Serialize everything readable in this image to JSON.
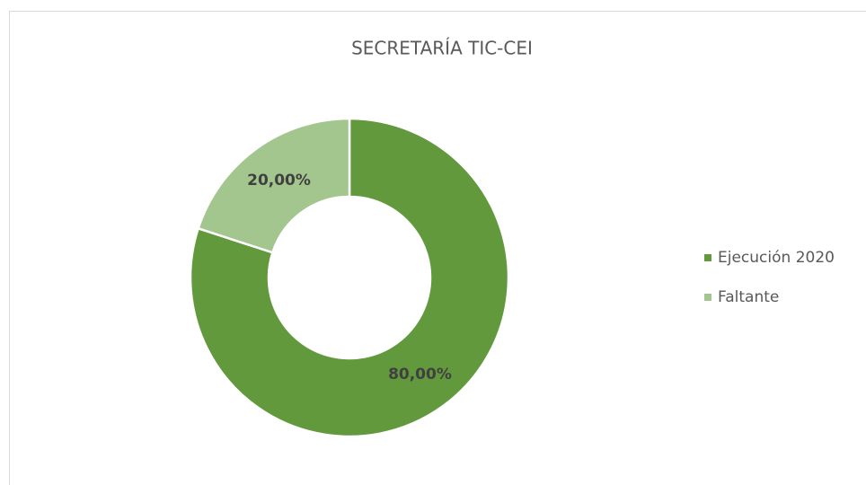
{
  "chart_data": {
    "type": "pie",
    "title": "SECRETARÍA TIC-CEI",
    "categories": [
      "Ejecución 2020",
      "Faltante"
    ],
    "values": [
      80,
      20
    ],
    "value_labels": [
      "80,00%",
      "20,00%"
    ],
    "colors": [
      "#63993d",
      "#a3c68e"
    ],
    "donut": true,
    "legend": "right"
  }
}
